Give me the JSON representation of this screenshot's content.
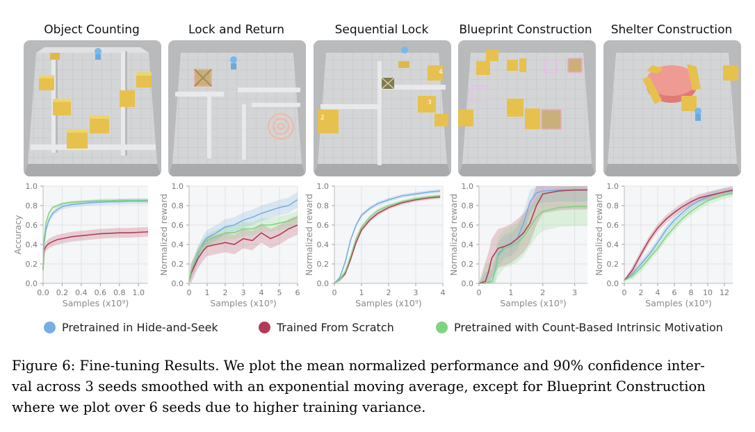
{
  "panels": [
    {
      "title": "Object Counting",
      "ylabel": "Accuracy",
      "xlabel": "Samples (x10⁹)",
      "xticks": [
        "0.0",
        "0.2",
        "0.4",
        "0.6",
        "0.8",
        "1.0"
      ],
      "yticks": [
        "0.0",
        "0.2",
        "0.4",
        "0.6",
        "0.8",
        "1.0"
      ]
    },
    {
      "title": "Lock and Return",
      "ylabel": "Normalized reward",
      "xlabel": "Samples (x10⁹)",
      "xticks": [
        "0",
        "1",
        "2",
        "3",
        "4",
        "5",
        "6"
      ],
      "yticks": [
        "0.0",
        "0.2",
        "0.4",
        "0.6",
        "0.8",
        "1.0"
      ]
    },
    {
      "title": "Sequential Lock",
      "ylabel": "Normalized reward",
      "xlabel": "Samples (x10⁹)",
      "xticks": [
        "0",
        "1",
        "2",
        "3",
        "4"
      ],
      "yticks": [
        "0.0",
        "0.2",
        "0.4",
        "0.6",
        "0.8",
        "1.0"
      ]
    },
    {
      "title": "Blueprint Construction",
      "ylabel": "Normalized reward",
      "xlabel": "Samples (x10⁹)",
      "xticks": [
        "0",
        "1",
        "2",
        "3"
      ],
      "yticks": [
        "0.0",
        "0.2",
        "0.4",
        "0.6",
        "0.8",
        "1.0"
      ]
    },
    {
      "title": "Shelter Construction",
      "ylabel": "Normalized reward",
      "xlabel": "Samples (x10⁹)",
      "xticks": [
        "0",
        "2",
        "4",
        "6",
        "8",
        "10",
        "12"
      ],
      "yticks": [
        "0.0",
        "0.2",
        "0.4",
        "0.6",
        "0.8",
        "1.0"
      ]
    }
  ],
  "scene_labels": {
    "seq_box_2": "2",
    "seq_box_3": "3",
    "seq_box_4": "4"
  },
  "legend": [
    {
      "label": "Pretrained in Hide-and-Seek",
      "color": "#78aee0"
    },
    {
      "label": "Trained From Scratch",
      "color": "#b23a55"
    },
    {
      "label": "Pretrained with Count-Based Intrinsic Motivation",
      "color": "#7fd47f"
    }
  ],
  "caption": {
    "line1": "Figure 6: Fine-tuning Results. We plot the mean normalized performance and 90% confidence inter-",
    "line2": "val across 3 seeds smoothed with an exponential moving average, except for Blueprint Construction",
    "line3": "where we plot over 6 seeds due to higher training variance."
  },
  "chart_data": [
    {
      "type": "line",
      "title": "Object Counting",
      "xlabel": "Samples (x10⁹)",
      "ylabel": "Accuracy",
      "xlim": [
        0,
        1.1
      ],
      "ylim": [
        0,
        1
      ],
      "series": [
        {
          "name": "Pretrained in Hide-and-Seek",
          "color": "#78aee0",
          "x": [
            0,
            0.01,
            0.03,
            0.06,
            0.1,
            0.15,
            0.2,
            0.3,
            0.4,
            0.5,
            0.6,
            0.7,
            0.8,
            0.9,
            1.0,
            1.1
          ],
          "y": [
            0.14,
            0.4,
            0.55,
            0.65,
            0.72,
            0.76,
            0.79,
            0.81,
            0.82,
            0.83,
            0.835,
            0.84,
            0.84,
            0.845,
            0.845,
            0.845
          ],
          "band": 0.03
        },
        {
          "name": "Trained From Scratch",
          "color": "#b23a55",
          "x": [
            0,
            0.01,
            0.03,
            0.06,
            0.1,
            0.15,
            0.2,
            0.3,
            0.4,
            0.5,
            0.6,
            0.7,
            0.8,
            0.9,
            1.0,
            1.1
          ],
          "y": [
            0.14,
            0.34,
            0.38,
            0.41,
            0.43,
            0.45,
            0.46,
            0.48,
            0.49,
            0.5,
            0.51,
            0.515,
            0.52,
            0.52,
            0.525,
            0.53
          ],
          "band": 0.05
        },
        {
          "name": "Pretrained with Count-Based Intrinsic Motivation",
          "color": "#7fd47f",
          "x": [
            0,
            0.01,
            0.03,
            0.06,
            0.1,
            0.15,
            0.2,
            0.3,
            0.4,
            0.5,
            0.6,
            0.7,
            0.8,
            0.9,
            1.0,
            1.1
          ],
          "y": [
            0.14,
            0.45,
            0.62,
            0.72,
            0.78,
            0.8,
            0.82,
            0.835,
            0.84,
            0.845,
            0.85,
            0.85,
            0.855,
            0.855,
            0.855,
            0.855
          ],
          "band": 0.015
        }
      ]
    },
    {
      "type": "line",
      "title": "Lock and Return",
      "xlabel": "Samples (x10⁹)",
      "ylabel": "Normalized reward",
      "xlim": [
        0,
        6
      ],
      "ylim": [
        0,
        1
      ],
      "series": [
        {
          "name": "Pretrained in Hide-and-Seek",
          "color": "#78aee0",
          "x": [
            0,
            0.1,
            0.3,
            0.5,
            0.8,
            1.0,
            1.5,
            2.0,
            2.5,
            3.0,
            3.5,
            4.0,
            4.5,
            5.0,
            5.5,
            6.0
          ],
          "y": [
            0.02,
            0.12,
            0.2,
            0.3,
            0.42,
            0.47,
            0.52,
            0.58,
            0.6,
            0.65,
            0.68,
            0.72,
            0.75,
            0.78,
            0.8,
            0.86
          ],
          "band": 0.08
        },
        {
          "name": "Trained From Scratch",
          "color": "#b23a55",
          "x": [
            0,
            0.1,
            0.3,
            0.5,
            0.8,
            1.0,
            1.5,
            2.0,
            2.5,
            3.0,
            3.5,
            4.0,
            4.5,
            5.0,
            5.5,
            6.0
          ],
          "y": [
            0.02,
            0.1,
            0.18,
            0.26,
            0.34,
            0.38,
            0.4,
            0.42,
            0.4,
            0.46,
            0.44,
            0.52,
            0.46,
            0.5,
            0.56,
            0.6
          ],
          "band": 0.1
        },
        {
          "name": "Pretrained with Count-Based Intrinsic Motivation",
          "color": "#7fd47f",
          "x": [
            0,
            0.1,
            0.3,
            0.5,
            0.8,
            1.0,
            1.5,
            2.0,
            2.5,
            3.0,
            3.5,
            4.0,
            4.5,
            5.0,
            5.5,
            6.0
          ],
          "y": [
            0.02,
            0.12,
            0.22,
            0.32,
            0.4,
            0.44,
            0.48,
            0.52,
            0.52,
            0.56,
            0.56,
            0.6,
            0.6,
            0.62,
            0.64,
            0.68
          ],
          "band": 0.07
        }
      ]
    },
    {
      "type": "line",
      "title": "Sequential Lock",
      "xlabel": "Samples (x10⁹)",
      "ylabel": "Normalized reward",
      "xlim": [
        0,
        4
      ],
      "ylim": [
        0,
        1
      ],
      "series": [
        {
          "name": "Pretrained in Hide-and-Seek",
          "color": "#78aee0",
          "x": [
            0,
            0.2,
            0.4,
            0.6,
            0.8,
            1.0,
            1.3,
            1.6,
            2.0,
            2.5,
            3.0,
            3.5,
            3.9
          ],
          "y": [
            0.0,
            0.06,
            0.22,
            0.45,
            0.6,
            0.7,
            0.77,
            0.82,
            0.86,
            0.9,
            0.92,
            0.94,
            0.95
          ],
          "band": 0.02
        },
        {
          "name": "Trained From Scratch",
          "color": "#b23a55",
          "x": [
            0,
            0.2,
            0.4,
            0.6,
            0.8,
            1.0,
            1.3,
            1.6,
            2.0,
            2.5,
            3.0,
            3.5,
            3.9
          ],
          "y": [
            0.0,
            0.04,
            0.1,
            0.25,
            0.42,
            0.55,
            0.65,
            0.72,
            0.78,
            0.83,
            0.86,
            0.88,
            0.89
          ],
          "band": 0.02
        },
        {
          "name": "Pretrained with Count-Based Intrinsic Motivation",
          "color": "#7fd47f",
          "x": [
            0,
            0.2,
            0.4,
            0.6,
            0.8,
            1.0,
            1.3,
            1.6,
            2.0,
            2.5,
            3.0,
            3.5,
            3.9
          ],
          "y": [
            0.0,
            0.04,
            0.12,
            0.28,
            0.46,
            0.58,
            0.68,
            0.75,
            0.8,
            0.84,
            0.87,
            0.89,
            0.9
          ],
          "band": 0.02
        }
      ]
    },
    {
      "type": "line",
      "title": "Blueprint Construction",
      "xlabel": "Samples (x10⁹)",
      "ylabel": "Normalized reward",
      "xlim": [
        0,
        3.4
      ],
      "ylim": [
        0,
        1
      ],
      "series": [
        {
          "name": "Pretrained in Hide-and-Seek",
          "color": "#78aee0",
          "x": [
            0,
            0.2,
            0.4,
            0.5,
            0.6,
            0.8,
            1.0,
            1.2,
            1.4,
            1.6,
            1.8,
            2.0,
            2.5,
            3.0,
            3.4
          ],
          "y": [
            0.0,
            0.0,
            0.02,
            0.12,
            0.3,
            0.38,
            0.4,
            0.46,
            0.62,
            0.84,
            0.93,
            0.95,
            0.96,
            0.96,
            0.96
          ],
          "band": 0.12
        },
        {
          "name": "Trained From Scratch",
          "color": "#b23a55",
          "x": [
            0,
            0.2,
            0.3,
            0.4,
            0.6,
            0.8,
            1.0,
            1.2,
            1.4,
            1.6,
            1.8,
            2.0,
            2.5,
            3.0,
            3.4
          ],
          "y": [
            0.0,
            0.02,
            0.12,
            0.26,
            0.36,
            0.38,
            0.41,
            0.46,
            0.52,
            0.62,
            0.8,
            0.92,
            0.95,
            0.96,
            0.96
          ],
          "band": 0.2
        },
        {
          "name": "Pretrained with Count-Based Intrinsic Motivation",
          "color": "#7fd47f",
          "x": [
            0,
            0.2,
            0.4,
            0.5,
            0.6,
            0.8,
            1.0,
            1.2,
            1.4,
            1.6,
            1.8,
            2.0,
            2.5,
            3.0,
            3.4
          ],
          "y": [
            0.0,
            0.0,
            0.02,
            0.12,
            0.28,
            0.36,
            0.38,
            0.42,
            0.48,
            0.58,
            0.68,
            0.74,
            0.78,
            0.79,
            0.79
          ],
          "band": 0.2
        }
      ]
    },
    {
      "type": "line",
      "title": "Shelter Construction",
      "xlabel": "Samples (x10⁹)",
      "ylabel": "Normalized reward",
      "xlim": [
        0,
        13
      ],
      "ylim": [
        0,
        1
      ],
      "series": [
        {
          "name": "Pretrained in Hide-and-Seek",
          "color": "#78aee0",
          "x": [
            0,
            1,
            2,
            3,
            4,
            5,
            6,
            7,
            8,
            9,
            10,
            11,
            12,
            13
          ],
          "y": [
            0.03,
            0.1,
            0.2,
            0.3,
            0.42,
            0.55,
            0.65,
            0.73,
            0.8,
            0.85,
            0.89,
            0.92,
            0.94,
            0.95
          ],
          "band": 0.04
        },
        {
          "name": "Trained From Scratch",
          "color": "#b23a55",
          "x": [
            0,
            1,
            2,
            3,
            4,
            5,
            6,
            7,
            8,
            9,
            10,
            11,
            12,
            13
          ],
          "y": [
            0.03,
            0.14,
            0.3,
            0.45,
            0.57,
            0.66,
            0.73,
            0.79,
            0.84,
            0.88,
            0.9,
            0.92,
            0.94,
            0.96
          ],
          "band": 0.04
        },
        {
          "name": "Pretrained with Count-Based Intrinsic Motivation",
          "color": "#7fd47f",
          "x": [
            0,
            1,
            2,
            3,
            4,
            5,
            6,
            7,
            8,
            9,
            10,
            11,
            12,
            13
          ],
          "y": [
            0.03,
            0.08,
            0.16,
            0.26,
            0.36,
            0.48,
            0.58,
            0.67,
            0.74,
            0.8,
            0.85,
            0.88,
            0.91,
            0.93
          ],
          "band": 0.04
        }
      ]
    }
  ]
}
